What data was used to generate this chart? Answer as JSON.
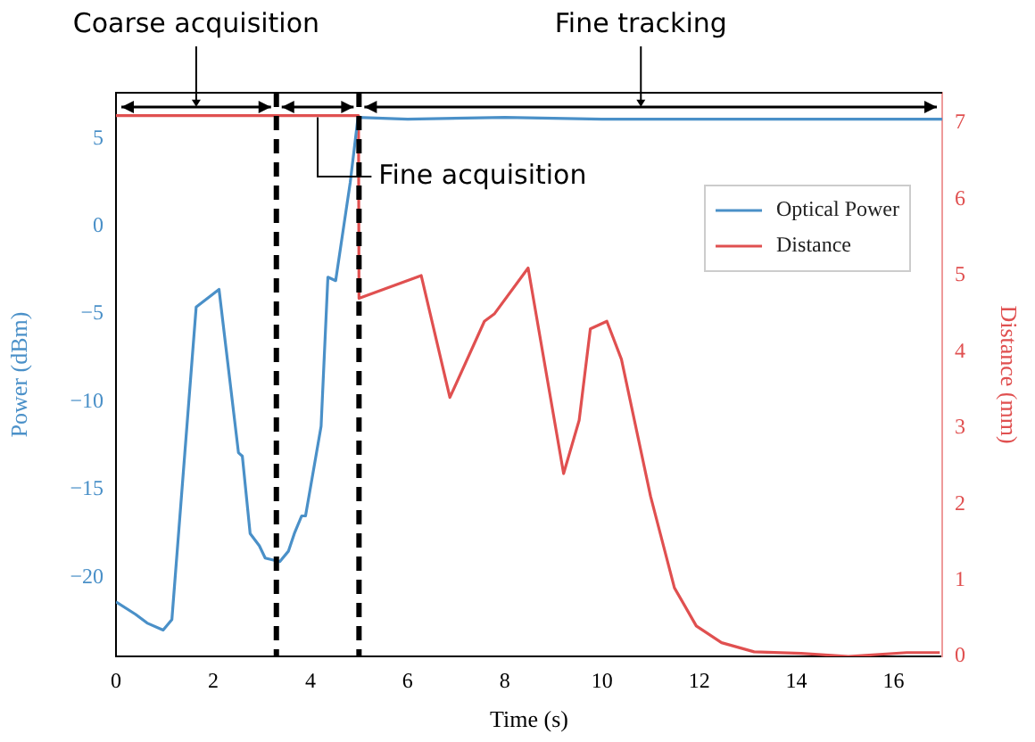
{
  "chart_data": {
    "type": "line",
    "xlabel": "Time (s)",
    "ylabel": "Power (dBm)",
    "y2label": "Distance (mm)",
    "xlim": [
      0,
      17
    ],
    "xticks": [
      0,
      2,
      4,
      6,
      8,
      10,
      12,
      14,
      16
    ],
    "ylim": [
      -24.5,
      7.6
    ],
    "yticks": [
      -20,
      -15,
      -10,
      -5,
      0,
      5
    ],
    "y2lim": [
      0,
      7.4
    ],
    "y2ticks": [
      0,
      1,
      2,
      3,
      4,
      5,
      6,
      7
    ],
    "grid": false,
    "legend": "top right",
    "line_style": "solid",
    "marker": "none",
    "series": [
      {
        "name": "Optical Power",
        "color": "#4a90c8",
        "x": [
          0,
          0.4,
          0.64,
          0.97,
          1.15,
          1.65,
          2.12,
          2.52,
          2.6,
          2.76,
          2.95,
          3.07,
          3.37,
          3.55,
          3.67,
          3.82,
          3.9,
          4.22,
          4.36,
          4.52,
          4.82,
          4.98,
          6,
          8,
          10,
          12,
          14,
          16,
          17
        ],
        "values": [
          -21.4,
          -22.1,
          -22.6,
          -23,
          -22.4,
          -4.6,
          -3.6,
          -12.9,
          -13.1,
          -17.5,
          -18.2,
          -18.9,
          -19.1,
          -18.5,
          -17.5,
          -16.5,
          -16.5,
          -11.4,
          -2.9,
          -3.1,
          2.5,
          6.2,
          6.1,
          6.2,
          6.1,
          6.1,
          6.1,
          6.1,
          6.1
        ]
      },
      {
        "name": "Distance",
        "color": "#e05050",
        "axis": "y2",
        "x": [
          0,
          4.99,
          5.0,
          6.28,
          6.87,
          7.58,
          7.79,
          8.48,
          9.21,
          9.53,
          9.76,
          10.1,
          10.4,
          11.0,
          11.49,
          11.94,
          12.46,
          13.13,
          14.1,
          15.07,
          16.27,
          16.95
        ],
        "values": [
          7.1,
          7.1,
          4.7,
          5.0,
          3.4,
          4.4,
          4.5,
          5.1,
          2.4,
          3.1,
          4.3,
          4.4,
          3.9,
          2.1,
          0.9,
          0.4,
          0.18,
          0.06,
          0.04,
          0,
          0.05,
          0.05
        ]
      }
    ],
    "ref_lines": [
      {
        "axis": "x",
        "value": 3.3,
        "color": "#000000",
        "line_style": "dashed"
      },
      {
        "axis": "x",
        "value": 5.0,
        "color": "#000000",
        "line_style": "dashed"
      }
    ],
    "annotations": [
      {
        "text": "Coarse acquisition",
        "x": 1.65,
        "y": 6.8
      },
      {
        "text": "Fine acquisition",
        "x": 4.15,
        "y": 6.2
      },
      {
        "text": "Fine tracking",
        "x": 10.8,
        "y": 6.8
      }
    ]
  }
}
